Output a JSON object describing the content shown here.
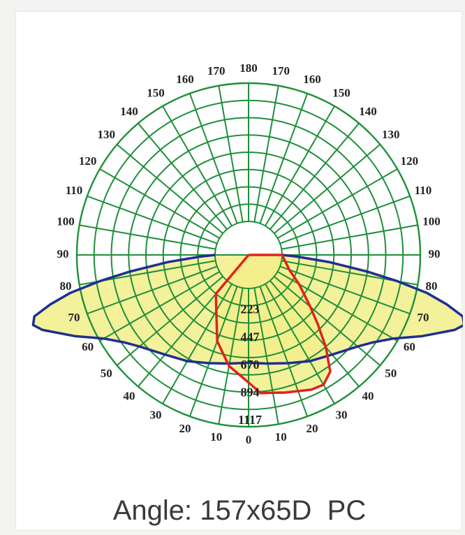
{
  "caption": {
    "label": "Angle:",
    "value": "157x65D",
    "material": "PC"
  },
  "colors": {
    "grid": "#1e8f3a",
    "fill": "#f2ef8a",
    "series_c0": "#1f2f8f",
    "series_c90": "#e0231c",
    "text": "#222222"
  },
  "chart_data": {
    "type": "polar",
    "title": "",
    "angle_labels_left": [
      "180",
      "170",
      "160",
      "150",
      "140",
      "130",
      "120",
      "110",
      "100",
      "90",
      "80",
      "70",
      "60",
      "50",
      "40",
      "30",
      "20",
      "10",
      "0"
    ],
    "angle_labels_right": [
      "170",
      "160",
      "150",
      "140",
      "130",
      "120",
      "110",
      "100",
      "90",
      "80",
      "70",
      "60",
      "50",
      "40",
      "30",
      "20",
      "10"
    ],
    "radial_ticks": [
      "223",
      "447",
      "670",
      "894",
      "1117"
    ],
    "radial_values": [
      223,
      447,
      670,
      894,
      1117
    ],
    "rmax": 1117,
    "grid": true,
    "series": [
      {
        "angles": [
          0,
          10,
          20,
          30,
          40,
          50,
          55,
          60,
          65,
          70,
          72,
          74,
          76,
          78,
          80,
          82,
          85,
          88,
          90
        ],
        "values": [
          600,
          620,
          660,
          720,
          780,
          880,
          960,
          1080,
          1280,
          1500,
          1560,
          1530,
          1380,
          1200,
          950,
          700,
          380,
          120,
          0
        ]
      },
      {
        "angles": [
          0,
          10,
          20,
          30,
          40,
          50,
          60,
          70,
          80,
          90
        ],
        "values": [
          700,
          640,
          620,
          640,
          690,
          760,
          820,
          870,
          920,
          960
        ],
        "mirror": true
      },
      {
        "angles": [
          -40,
          -30,
          -20,
          -10,
          0,
          5,
          10,
          15,
          20,
          25,
          30,
          35,
          40,
          45,
          50,
          60,
          70,
          90
        ],
        "values": [
          140,
          250,
          470,
          640,
          760,
          850,
          860,
          880,
          900,
          930,
          940,
          880,
          700,
          520,
          380,
          200,
          80,
          0
        ]
      }
    ]
  }
}
